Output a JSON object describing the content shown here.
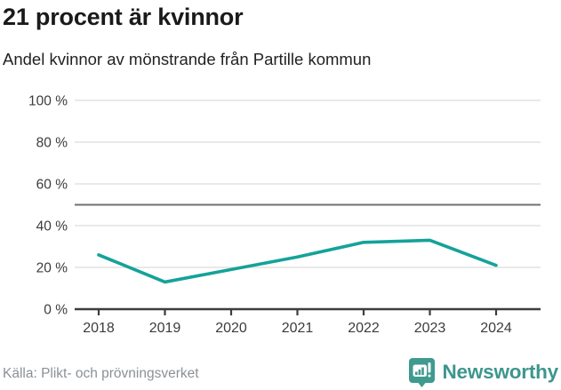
{
  "header": {
    "title": "21 procent är kvinnor",
    "subtitle": "Andel kvinnor av mönstrande från Partille kommun"
  },
  "chart_data": {
    "type": "line",
    "x": [
      2018,
      2019,
      2020,
      2021,
      2022,
      2023,
      2024
    ],
    "series": [
      {
        "name": "Andel kvinnor av mönstrande",
        "values": [
          26,
          13,
          19,
          25,
          32,
          33,
          21
        ]
      }
    ],
    "title": "21 procent är kvinnor",
    "subtitle": "Andel kvinnor av mönstrande från Partille kommun",
    "xlabel": "",
    "ylabel": "",
    "ylim": [
      0,
      100
    ],
    "yticks": [
      0,
      20,
      40,
      60,
      80,
      100
    ],
    "ytick_suffix": " %",
    "reference_line": 50,
    "grid": true,
    "legend": "none"
  },
  "colors": {
    "line": "#15a29a",
    "grid": "#e2e2e2",
    "reference": "#707070",
    "axis": "#3d3d3d",
    "tick_text": "#3c3c3c",
    "title_text": "#1a1a1a",
    "source_text": "#8b9196",
    "brand": "#3d968e"
  },
  "footer": {
    "source": "Källa: Plikt- och prövningsverket",
    "brand_name": "Newsworthy"
  }
}
